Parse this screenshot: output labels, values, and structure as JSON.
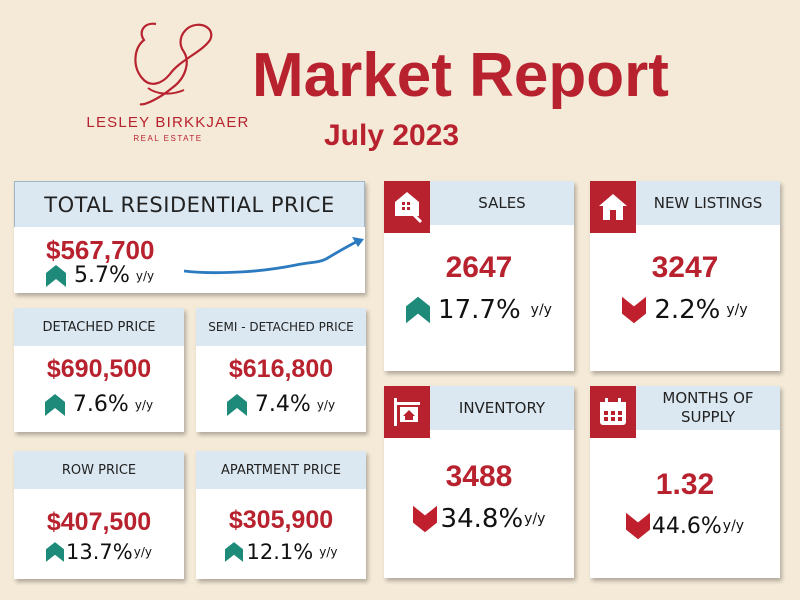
{
  "brand": {
    "name": "LESLEY BIRKKJAER",
    "tagline": "REAL ESTATE"
  },
  "header": {
    "title": "Market Report",
    "subtitle": "July 2023"
  },
  "colors": {
    "accent": "#b8222f",
    "up": "#1e8a7a",
    "down": "#c0202e",
    "header_bg": "#dbe8f1",
    "page_bg": "#f5ead8",
    "trend_line": "#2c7bc0"
  },
  "total": {
    "label": "TOTAL RESIDENTIAL PRICE",
    "value": "$567,700",
    "change": "5.7%",
    "direction": "up",
    "yy": "y/y"
  },
  "detached": {
    "label": "DETACHED PRICE",
    "value": "$690,500",
    "change": "7.6%",
    "direction": "up",
    "yy": "y/y"
  },
  "semi": {
    "label": "SEMI - DETACHED PRICE",
    "value": "$616,800",
    "change": "7.4%",
    "direction": "up",
    "yy": "y/y"
  },
  "row": {
    "label": "ROW PRICE",
    "value": "$407,500",
    "change": "13.7%",
    "direction": "up",
    "yy": "y/y"
  },
  "apartment": {
    "label": "APARTMENT PRICE",
    "value": "$305,900",
    "change": "12.1%",
    "direction": "up",
    "yy": "y/y"
  },
  "sales": {
    "label": "SALES",
    "value": "2647",
    "change": "17.7%",
    "direction": "up",
    "yy": "y/y",
    "icon": "house-key-icon"
  },
  "new_listings": {
    "label": "NEW LISTINGS",
    "value": "3247",
    "change": "2.2%",
    "direction": "down",
    "yy": "y/y",
    "icon": "house-icon"
  },
  "inventory": {
    "label": "INVENTORY",
    "value": "3488",
    "change": "34.8%",
    "direction": "down",
    "yy": "y/y",
    "icon": "house-sign-icon"
  },
  "months_supply": {
    "label_line1": "MONTHS OF",
    "label_line2": "SUPPLY",
    "value": "1.32",
    "change": "44.6%",
    "direction": "down",
    "yy": "y/y",
    "icon": "calendar-icon"
  }
}
